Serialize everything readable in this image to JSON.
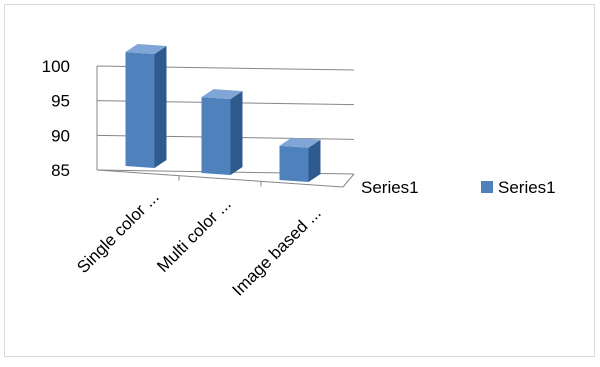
{
  "chart_data": {
    "type": "bar",
    "view": "3d-column",
    "title": "",
    "xlabel": "",
    "ylabel": "",
    "categories": [
      "Single color ...",
      "Multi color ...",
      "Image based ..."
    ],
    "series": [
      {
        "name": "Series1",
        "values": [
          100,
          94.5,
          88.5
        ]
      }
    ],
    "ylim": [
      85,
      100
    ],
    "yticks": [
      "85",
      "90",
      "95",
      "100"
    ],
    "depth_axis_label": "Series1",
    "grid": true,
    "legend": {
      "position": "right",
      "entries": [
        "Series1"
      ]
    },
    "colors": {
      "bar_front": "#4F81BD",
      "bar_side": "#2F5A8E",
      "bar_top": "#7FA6D6",
      "gridline": "#868686",
      "chart_border": "#D9D9D9"
    }
  }
}
